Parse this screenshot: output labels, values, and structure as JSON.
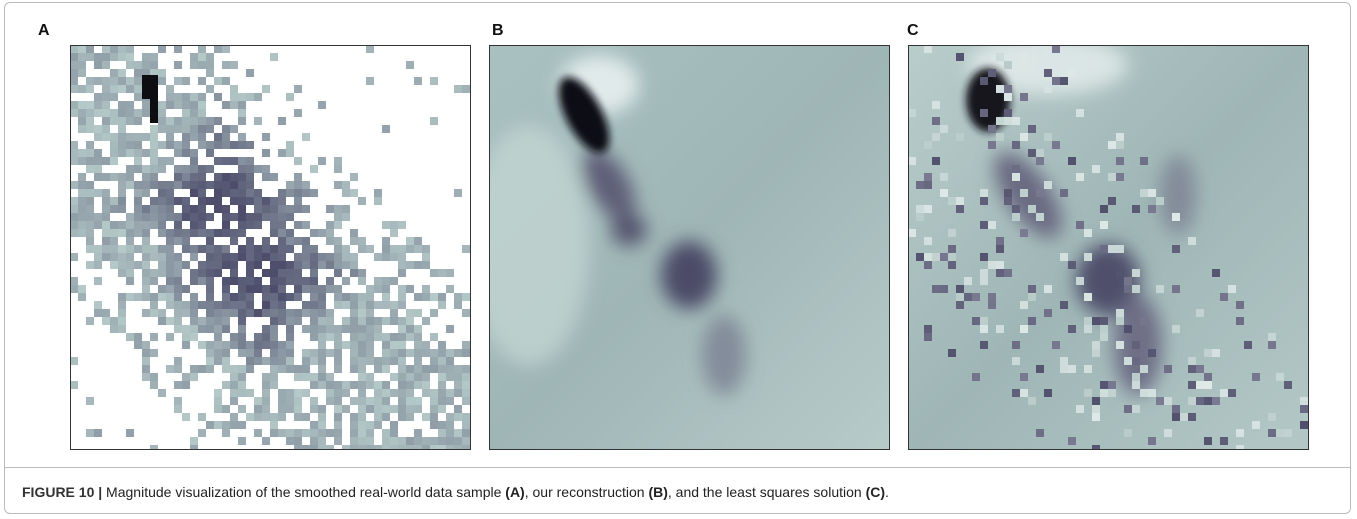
{
  "figure": {
    "panels": [
      {
        "label": "A"
      },
      {
        "label": "B"
      },
      {
        "label": "C"
      }
    ],
    "caption": {
      "number": "FIGURE 10 |",
      "parts": [
        {
          "text": " Magnitude visualization of the smoothed real-world data sample ",
          "bold": false
        },
        {
          "text": "(A)",
          "bold": true
        },
        {
          "text": ", our reconstruction ",
          "bold": false
        },
        {
          "text": "(B)",
          "bold": true
        },
        {
          "text": ", and the least squares solution ",
          "bold": false
        },
        {
          "text": "(C)",
          "bold": true
        },
        {
          "text": ".",
          "bold": false
        }
      ]
    }
  }
}
